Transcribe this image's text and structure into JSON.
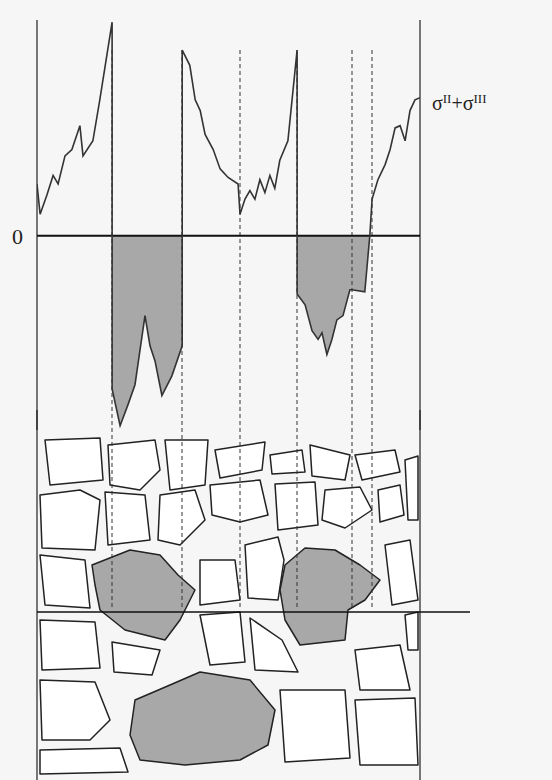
{
  "chart_data": {
    "type": "line",
    "x": [
      0,
      0.8,
      2.6,
      4.2,
      5.5,
      7.3,
      9.1,
      11.2,
      12.0,
      14.6,
      16.4,
      19.6,
      19.6,
      19.6,
      21.7,
      23.8,
      25.6,
      26.9,
      28.2,
      29.5,
      30.8,
      32.6,
      35.2,
      37.9,
      37.9,
      37.9,
      39.9,
      41.3,
      42.6,
      43.9,
      46.0,
      47.8,
      49.9,
      52.5,
      53.0,
      54.3,
      55.6,
      56.9,
      58.2,
      59.5,
      60.8,
      62.1,
      63.4,
      65.5,
      67.9,
      67.9,
      67.9,
      70.0,
      71.8,
      73.4,
      74.4,
      75.7,
      77.0,
      78.3,
      79.9,
      81.7,
      82.2,
      85.6,
      86.9,
      87.5,
      89.0,
      90.9,
      92.2,
      93.5,
      94.8,
      96.1,
      97.4,
      98.7,
      100
    ],
    "series": [
      {
        "name": "σII+σIII",
        "color": "#333333",
        "values": [
          24,
          10,
          19,
          28,
          24,
          37,
          40,
          51,
          37,
          44,
          63,
          99,
          0,
          -71,
          -88,
          -78,
          -69,
          -53,
          -37,
          -51,
          -58,
          -74,
          -65,
          -51,
          0,
          86,
          79,
          63,
          58,
          47,
          40,
          31,
          27,
          24,
          10,
          17,
          21,
          17,
          26,
          20,
          28,
          22,
          35,
          44,
          86,
          0,
          -27,
          -32,
          -44,
          -48,
          -45,
          -55,
          -48,
          -39,
          -37,
          -25,
          -25,
          -26,
          0,
          17,
          26,
          33,
          40,
          50,
          51,
          44,
          58,
          63,
          64
        ]
      }
    ],
    "xlim": [
      0,
      100
    ],
    "ylim": [
      -90,
      100
    ],
    "yticks": [
      0
    ],
    "tick_labels": "y"
  }
}
